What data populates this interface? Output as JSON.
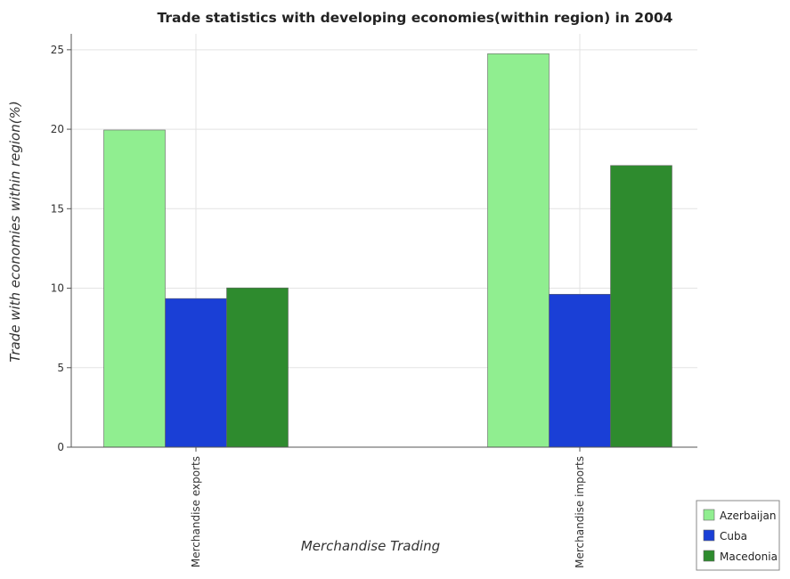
{
  "chart_data": {
    "type": "bar",
    "title": "Trade statistics with developing economies(within region) in 2004",
    "xlabel": "Merchandise Trading",
    "ylabel": "Trade with economies within region(%)",
    "categories": [
      "Merchandise exports",
      "Merchandise imports"
    ],
    "series": [
      {
        "name": "Azerbaijan",
        "color": "#90ee90",
        "values": [
          19.95,
          24.75
        ]
      },
      {
        "name": "Cuba",
        "color": "#1a3fd6",
        "values": [
          9.35,
          9.62
        ]
      },
      {
        "name": "Macedonia",
        "color": "#2e8b2e",
        "values": [
          10.02,
          17.72
        ]
      }
    ],
    "ylim": [
      0,
      26
    ],
    "yticks": [
      0,
      5,
      10,
      15,
      20,
      25
    ],
    "grid": true,
    "legend_position": "bottom-right"
  }
}
